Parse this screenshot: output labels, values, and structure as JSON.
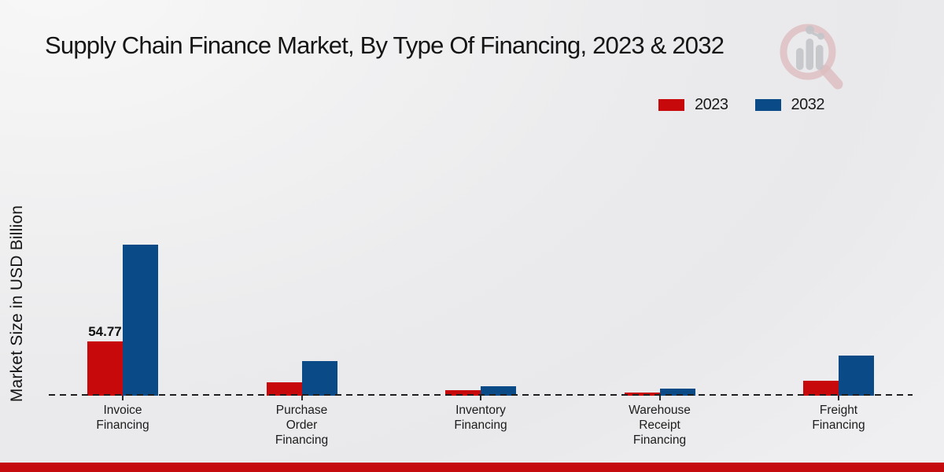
{
  "title": "Supply Chain Finance Market, By Type Of Financing, 2023 & 2032",
  "y_axis_label": "Market Size in USD Billion",
  "legend": {
    "items": [
      {
        "label": "2023",
        "color": "#c8090c"
      },
      {
        "label": "2032",
        "color": "#0a4a86"
      }
    ]
  },
  "footer": {
    "accent_color": "#c50b0d"
  },
  "colors": {
    "series_2023": "#c8090c",
    "series_2032": "#0a4a86",
    "baseline": "#1f1f1f",
    "background": "#ebebed"
  },
  "chart_data": {
    "type": "bar",
    "title": "Supply Chain Finance Market, By Type Of Financing, 2023 & 2032",
    "ylabel": "Market Size in USD Billion",
    "xlabel": "",
    "unit": "USD Billion",
    "categories": [
      "Invoice Financing",
      "Purchase Order Financing",
      "Inventory Financing",
      "Warehouse Receipt Financing",
      "Freight Financing"
    ],
    "category_label_lines": [
      [
        "Invoice",
        "Financing"
      ],
      [
        "Purchase",
        "Order",
        "Financing"
      ],
      [
        "Inventory",
        "Financing"
      ],
      [
        "Warehouse",
        "Receipt",
        "Financing"
      ],
      [
        "Freight",
        "Financing"
      ]
    ],
    "series": [
      {
        "name": "2023",
        "color": "#c8090c",
        "values": [
          54.77,
          13.4,
          5.6,
          2.8,
          14.9
        ],
        "value_labels": [
          "54.77",
          "",
          "",
          "",
          ""
        ]
      },
      {
        "name": "2032",
        "color": "#0a4a86",
        "values": [
          153.0,
          34.7,
          9.3,
          7.5,
          40.5
        ],
        "value_labels": [
          "",
          "",
          "",
          "",
          ""
        ]
      }
    ],
    "ylim": [
      0,
      160
    ],
    "grid": false,
    "legend_position": "top-right",
    "baseline_style": "dashed",
    "y_axis_ticks_visible": false
  }
}
